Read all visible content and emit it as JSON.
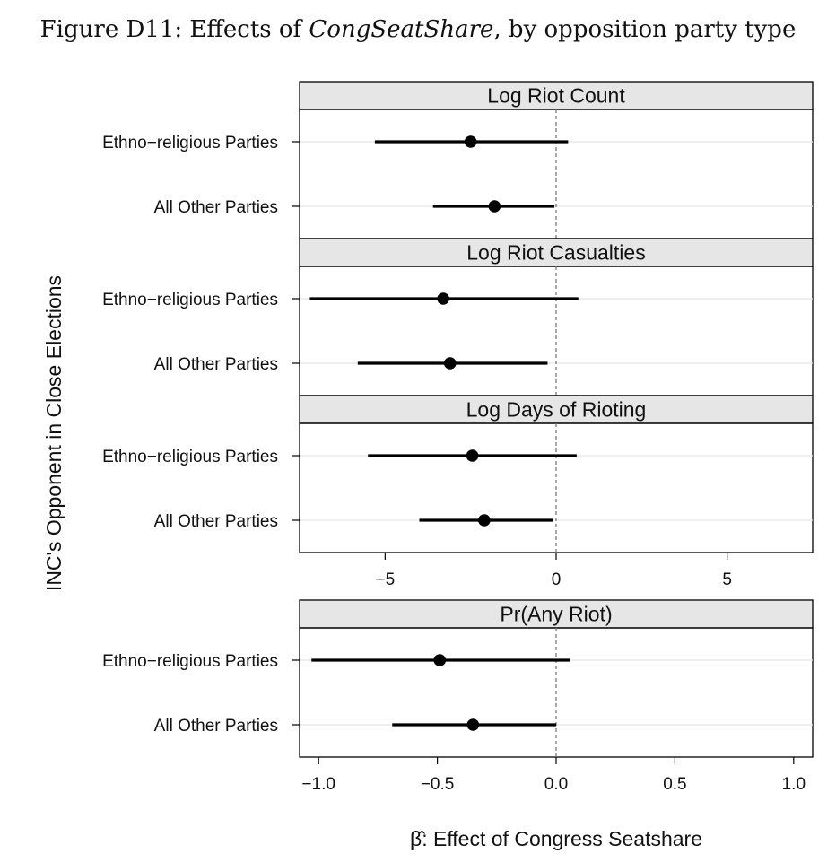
{
  "figure": {
    "title_prefix": "Figure D11: Effects of ",
    "title_variable": "CongSeatShare",
    "title_suffix": ", by opposition party type"
  },
  "chart_data": [
    {
      "type": "dot-interval",
      "group": "top",
      "ylabel": "INC's Opponent in Close Elections",
      "xlim": [
        -7.5,
        7.5
      ],
      "xticks": [
        "−5",
        "0",
        "5"
      ],
      "xtick_values": [
        -5,
        0,
        5
      ],
      "reference_line": 0,
      "categories": [
        "Ethno−religious Parties",
        "All Other Parties"
      ],
      "panels": [
        {
          "title": "Log Riot Count",
          "points": [
            {
              "category": "Ethno−religious Parties",
              "estimate": -2.5,
              "lower": -5.3,
              "upper": 0.35
            },
            {
              "category": "All Other Parties",
              "estimate": -1.8,
              "lower": -3.6,
              "upper": -0.05
            }
          ]
        },
        {
          "title": "Log Riot Casualties",
          "points": [
            {
              "category": "Ethno−religious Parties",
              "estimate": -3.3,
              "lower": -7.2,
              "upper": 0.65
            },
            {
              "category": "All Other Parties",
              "estimate": -3.1,
              "lower": -5.8,
              "upper": -0.25
            }
          ]
        },
        {
          "title": "Log Days of Rioting",
          "points": [
            {
              "category": "Ethno−religious Parties",
              "estimate": -2.45,
              "lower": -5.5,
              "upper": 0.6
            },
            {
              "category": "All Other Parties",
              "estimate": -2.1,
              "lower": -4.0,
              "upper": -0.1
            }
          ]
        }
      ]
    },
    {
      "type": "dot-interval",
      "group": "bottom",
      "xlim": [
        -1.08,
        1.08
      ],
      "xticks": [
        "−1.0",
        "−0.5",
        "0.0",
        "0.5",
        "1.0"
      ],
      "xtick_values": [
        -1.0,
        -0.5,
        0.0,
        0.5,
        1.0
      ],
      "reference_line": 0,
      "xlabel": "β̂: Effect of Congress Seatshare",
      "categories": [
        "Ethno−religious Parties",
        "All Other Parties"
      ],
      "panels": [
        {
          "title": "Pr(Any Riot)",
          "points": [
            {
              "category": "Ethno−religious Parties",
              "estimate": -0.49,
              "lower": -1.03,
              "upper": 0.06
            },
            {
              "category": "All Other Parties",
              "estimate": -0.35,
              "lower": -0.69,
              "upper": 0.0
            }
          ]
        }
      ]
    }
  ],
  "colors": {
    "strip_fill": "#e6e6e6",
    "ink": "#000000",
    "gridline": "#e5e5e5",
    "reference_line": "#7a7a7a"
  }
}
